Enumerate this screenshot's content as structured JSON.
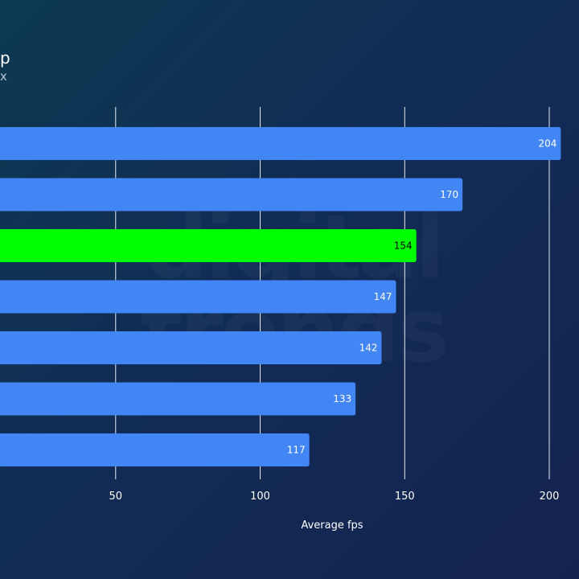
{
  "header": {
    "title_fragment": "p",
    "subtitle_fragment": "x"
  },
  "watermark": "digital trends",
  "colors": {
    "bar": "#4285f4",
    "highlight": "#00ff00",
    "value_text": "#ffffff",
    "value_text_highlight": "#000000",
    "grid": "#ffffff"
  },
  "chart_data": {
    "type": "bar",
    "orientation": "horizontal",
    "values": [
      204,
      170,
      154,
      147,
      142,
      133,
      117
    ],
    "highlight_index": 2,
    "xlabel": "Average fps",
    "xlim": [
      10,
      205
    ],
    "xticks": [
      50,
      100,
      150,
      200
    ],
    "grid": true
  }
}
